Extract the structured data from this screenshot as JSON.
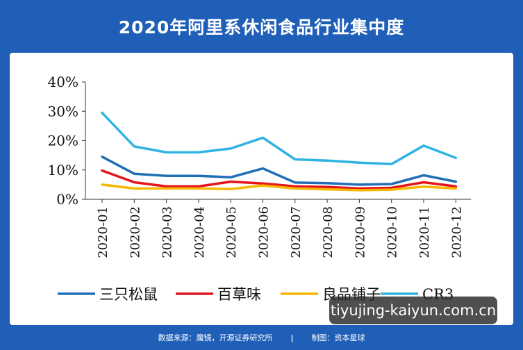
{
  "title": "2020年阿里系休闲食品行业集中度",
  "footer": {
    "source": "数据来源：魔镜，开源证券研究所",
    "separator": "|",
    "producer": "制图：资本星球"
  },
  "watermark": "tiyujing-kaiyun.com.cn",
  "colors": {
    "background": "#1f5fb8",
    "panel": "#ffffff"
  },
  "chart_data": {
    "type": "line",
    "title": "2020年阿里系休闲食品行业集中度",
    "xlabel": "",
    "ylabel": "",
    "categories": [
      "2020-01",
      "2020-02",
      "2020-03",
      "2020-04",
      "2020-05",
      "2020-06",
      "2020-07",
      "2020-08",
      "2020-09",
      "2020-10",
      "2020-11",
      "2020-12"
    ],
    "y_ticks": [
      "0%",
      "10%",
      "20%",
      "30%",
      "40%"
    ],
    "ylim": [
      0,
      40
    ],
    "y_unit": "%",
    "grid": false,
    "legend_position": "bottom",
    "series": [
      {
        "name": "三只松鼠",
        "color": "#1f6fb6",
        "values": [
          14.5,
          8.7,
          8.0,
          8.0,
          7.5,
          10.5,
          5.7,
          5.5,
          5.0,
          5.2,
          8.2,
          6.0
        ]
      },
      {
        "name": "百草味",
        "color": "#e4141b",
        "values": [
          9.8,
          5.8,
          4.4,
          4.4,
          6.0,
          5.4,
          4.4,
          4.2,
          3.7,
          3.9,
          5.8,
          4.4
        ]
      },
      {
        "name": "良品铺子",
        "color": "#f6b700",
        "values": [
          5.0,
          3.7,
          3.7,
          3.7,
          3.5,
          4.7,
          3.7,
          3.4,
          3.1,
          3.3,
          4.3,
          3.7
        ]
      },
      {
        "name": "CR3",
        "color": "#2eb3e3",
        "values": [
          29.5,
          18.0,
          16.0,
          16.0,
          17.3,
          21.0,
          13.6,
          13.2,
          12.5,
          12.0,
          18.3,
          14.1
        ]
      }
    ]
  }
}
